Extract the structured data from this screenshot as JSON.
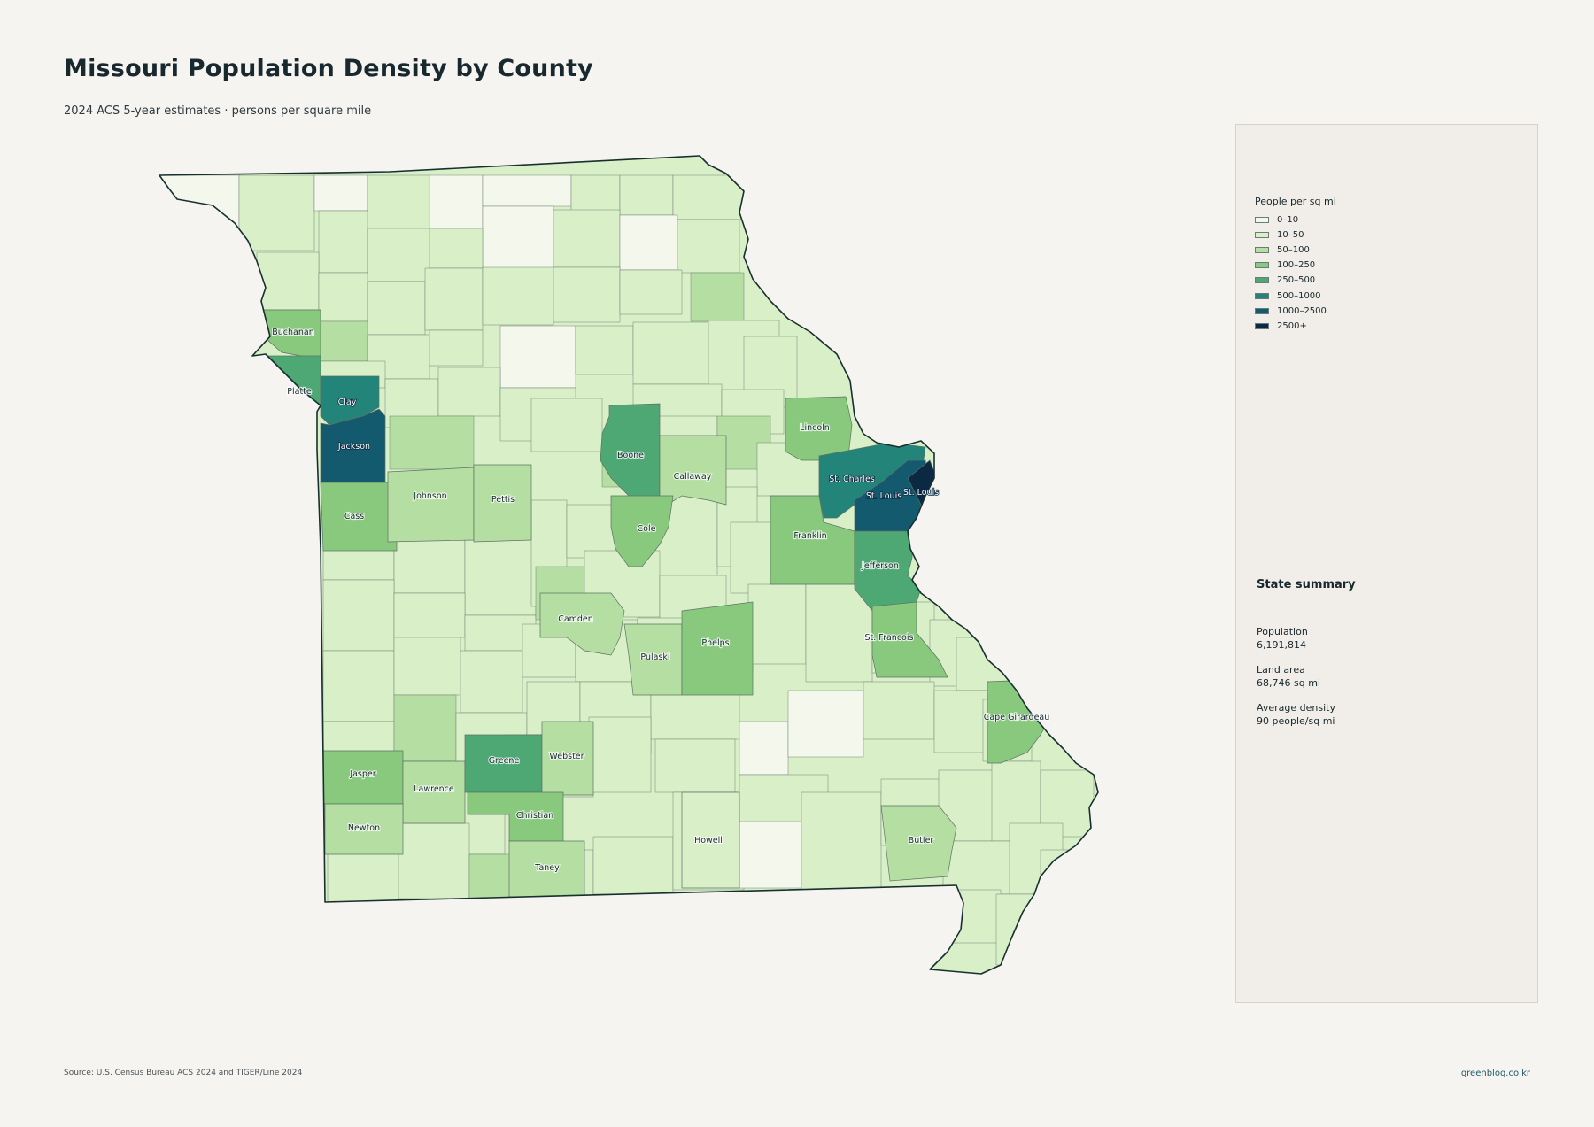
{
  "header": {
    "title": "Missouri Population Density by County",
    "subtitle": "2024 ACS 5-year estimates · persons per square mile"
  },
  "legend": {
    "title": "People per sq mi",
    "items": [
      {
        "label": "0–10",
        "color": "#f4f8ec"
      },
      {
        "label": "10–50",
        "color": "#d9efc7"
      },
      {
        "label": "50–100",
        "color": "#b5dfa2"
      },
      {
        "label": "100–250",
        "color": "#88c97e"
      },
      {
        "label": "250–500",
        "color": "#4ea874"
      },
      {
        "label": "500–1000",
        "color": "#23847a"
      },
      {
        "label": "1000–2500",
        "color": "#135a6e"
      },
      {
        "label": "2500+",
        "color": "#0b2942"
      }
    ]
  },
  "summary": {
    "title": "State summary",
    "population_label": "Population",
    "population_value": "6,191,814",
    "area_label": "Land area",
    "area_value": "68,746 sq mi",
    "density_label": "Average density",
    "density_value": "90 people/sq mi"
  },
  "footer": {
    "source": "Source: U.S. Census Bureau ACS 2024 and TIGER/Line 2024",
    "site": "greenblog.co.kr"
  },
  "map": {
    "border_color": "#17302f",
    "labeled_counties": [
      {
        "name": "Buchanan",
        "bin": 3
      },
      {
        "name": "Platte",
        "bin": 4
      },
      {
        "name": "Clay",
        "bin": 5
      },
      {
        "name": "Jackson",
        "bin": 6
      },
      {
        "name": "Cass",
        "bin": 3
      },
      {
        "name": "Johnson",
        "bin": 2
      },
      {
        "name": "Pettis",
        "bin": 2
      },
      {
        "name": "Boone",
        "bin": 4
      },
      {
        "name": "Callaway",
        "bin": 2
      },
      {
        "name": "Cole",
        "bin": 3
      },
      {
        "name": "Lincoln",
        "bin": 3
      },
      {
        "name": "St. Charles",
        "bin": 5
      },
      {
        "name": "St. Louis",
        "bin": 6
      },
      {
        "name": "St. Louis",
        "bin": 7
      },
      {
        "name": "Franklin",
        "bin": 3
      },
      {
        "name": "Jefferson",
        "bin": 4
      },
      {
        "name": "Camden",
        "bin": 2
      },
      {
        "name": "Pulaski",
        "bin": 2
      },
      {
        "name": "Phelps",
        "bin": 3
      },
      {
        "name": "St. Francois",
        "bin": 3
      },
      {
        "name": "Cape Girardeau",
        "bin": 3
      },
      {
        "name": "Jasper",
        "bin": 3
      },
      {
        "name": "Lawrence",
        "bin": 2
      },
      {
        "name": "Greene",
        "bin": 4
      },
      {
        "name": "Webster",
        "bin": 2
      },
      {
        "name": "Newton",
        "bin": 2
      },
      {
        "name": "Christian",
        "bin": 3
      },
      {
        "name": "Taney",
        "bin": 2
      },
      {
        "name": "Howell",
        "bin": 1
      },
      {
        "name": "Butler",
        "bin": 2
      }
    ]
  }
}
